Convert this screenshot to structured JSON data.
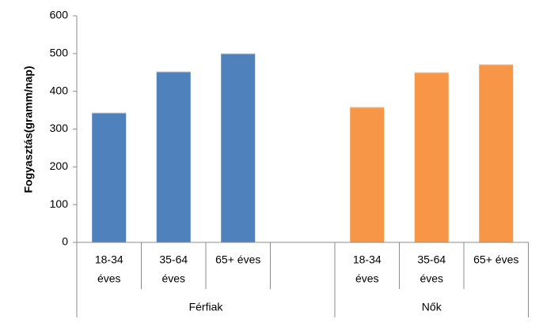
{
  "chart_data": {
    "type": "bar",
    "ylabel": "Fogyasztás(gramm/nap)",
    "ylim": [
      0,
      600
    ],
    "yticks": [
      0,
      100,
      200,
      300,
      400,
      500,
      600
    ],
    "grid": false,
    "groups": [
      {
        "name": "Férfiak",
        "categories": [
          [
            "18-34",
            "éves"
          ],
          [
            "35-64",
            "éves"
          ],
          [
            "65+ éves"
          ],
          []
        ],
        "values": [
          343,
          452,
          500,
          null
        ],
        "color": "#4F81BD"
      },
      {
        "name": "Nők",
        "categories": [
          [
            "18-34",
            "éves"
          ],
          [
            "35-64",
            "éves"
          ],
          [
            "65+ éves"
          ]
        ],
        "values": [
          358,
          450,
          471
        ],
        "color": "#F79646"
      }
    ]
  }
}
